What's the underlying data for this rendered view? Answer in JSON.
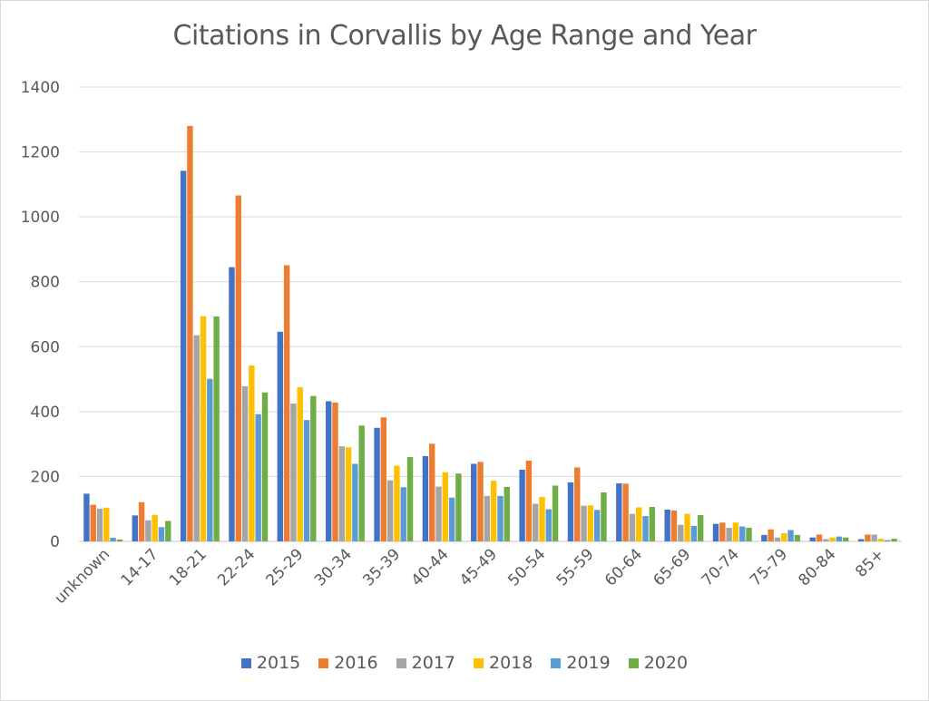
{
  "chart_data": {
    "type": "bar",
    "title": "Citations in Corvallis by Age Range and Year",
    "xlabel": "",
    "ylabel": "",
    "ylim": [
      0,
      1400
    ],
    "yticks": [
      "0",
      "200",
      "400",
      "600",
      "800",
      "1000",
      "1200",
      "1400"
    ],
    "grid": true,
    "legend_position": "bottom",
    "categories": [
      "unknown",
      "14-17",
      "18-21",
      "22-24",
      "25-29",
      "30-34",
      "35-39",
      "40-44",
      "45-49",
      "50-54",
      "55-59",
      "60-64",
      "65-69",
      "70-74",
      "75-79",
      "80-84",
      "85+"
    ],
    "series": [
      {
        "name": "2015",
        "color": "#4472c4",
        "values": [
          147,
          80,
          1142,
          845,
          646,
          432,
          350,
          263,
          239,
          221,
          182,
          179,
          98,
          54,
          20,
          12,
          7
        ]
      },
      {
        "name": "2016",
        "color": "#ed7d31",
        "values": [
          113,
          121,
          1280,
          1066,
          851,
          428,
          382,
          301,
          245,
          249,
          228,
          178,
          95,
          58,
          37,
          21,
          21
        ]
      },
      {
        "name": "2017",
        "color": "#a5a5a5",
        "values": [
          101,
          65,
          635,
          478,
          425,
          293,
          188,
          169,
          140,
          116,
          110,
          85,
          51,
          42,
          12,
          7,
          21
        ]
      },
      {
        "name": "2018",
        "color": "#ffc000",
        "values": [
          104,
          82,
          694,
          542,
          475,
          290,
          233,
          213,
          187,
          137,
          111,
          105,
          85,
          58,
          25,
          12,
          8
        ]
      },
      {
        "name": "2019",
        "color": "#5b9bd5",
        "values": [
          11,
          44,
          501,
          392,
          374,
          239,
          167,
          135,
          140,
          99,
          97,
          78,
          48,
          46,
          35,
          15,
          4
        ]
      },
      {
        "name": "2020",
        "color": "#70ad47",
        "values": [
          6,
          63,
          693,
          459,
          448,
          357,
          260,
          209,
          168,
          172,
          151,
          106,
          81,
          42,
          20,
          12,
          8
        ]
      }
    ]
  },
  "colors": {
    "gridline": "#d9d9d9",
    "text": "#595959"
  }
}
